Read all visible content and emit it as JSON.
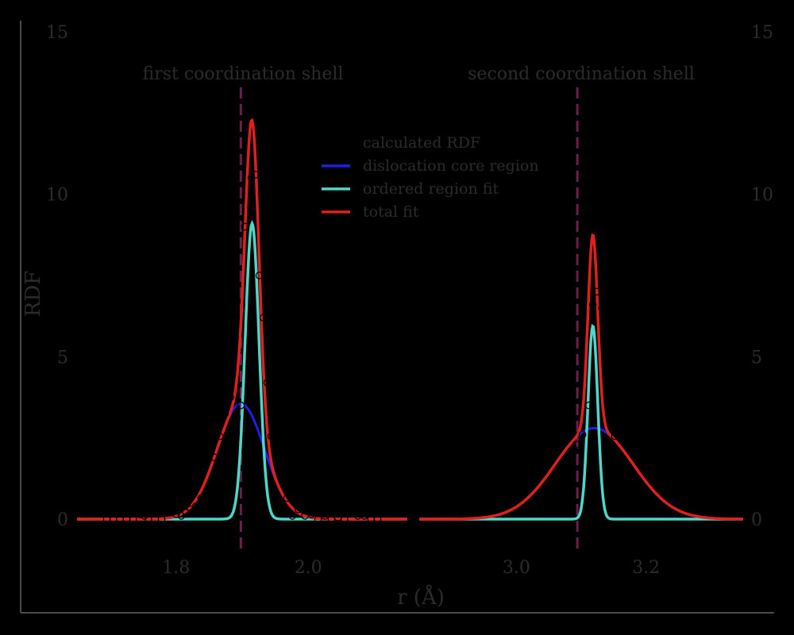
{
  "chart_data": {
    "type": "line",
    "ylabel": "RDF",
    "xlabel": "r (Å)",
    "ylim": [
      0,
      15
    ],
    "yticks": [
      0,
      5,
      10,
      15
    ],
    "legend": {
      "placement": "top-center",
      "entries": [
        {
          "label": "calculated RDF",
          "marker": "circle",
          "color": "#000000"
        },
        {
          "label": "dislocation core region",
          "marker": "line",
          "color": "#1f1fe0"
        },
        {
          "label": "ordered region fit",
          "marker": "line",
          "color": "#4fd6c8"
        },
        {
          "label": "total fit",
          "marker": "line",
          "color": "#e0201f"
        }
      ]
    },
    "panels": [
      {
        "title": "first coordination shell",
        "xlim": [
          1.65,
          2.15
        ],
        "xticks": [
          1.8,
          2.0
        ],
        "xticklabels": [
          "1.8",
          "2.0"
        ],
        "dashed_x": 1.898,
        "dislocation": {
          "amp": 3.55,
          "mu": 1.898,
          "sigma": 0.036
        },
        "ordered": {
          "amp": 9.1,
          "mu": 1.915,
          "sigma": 0.0105
        },
        "calculated_rdf": {
          "x": [
            1.695,
            1.705,
            1.715,
            1.725,
            1.735,
            1.745,
            1.752,
            1.758,
            1.765,
            1.772,
            1.778,
            1.785,
            1.792,
            1.8,
            1.808,
            1.815,
            1.822,
            1.83,
            1.838,
            1.846,
            1.852,
            1.858,
            1.866,
            1.874,
            1.882,
            1.89,
            1.898,
            1.904,
            1.91,
            1.914,
            1.92,
            1.926,
            1.932,
            1.938,
            1.944,
            1.952,
            1.96,
            1.968,
            1.976,
            1.985,
            1.995,
            2.005,
            2.015,
            2.025,
            2.035,
            2.045,
            2.055,
            2.065,
            2.075,
            2.085,
            2.095,
            2.105
          ],
          "y": [
            0.0,
            0.0,
            0.0,
            0.0,
            0.0,
            0.15,
            0.1,
            0.0,
            0.55,
            0.3,
            0.0,
            0.3,
            0.2,
            0.15,
            0.1,
            0.2,
            0.3,
            0.4,
            0.65,
            0.8,
            1.0,
            1.9,
            2.55,
            3.25,
            3.75,
            2.75,
            3.5,
            9.0,
            12.8,
            10.5,
            10.6,
            7.5,
            6.2,
            4.2,
            2.55,
            2.0,
            1.35,
            0.65,
            0.1,
            0.3,
            0.1,
            0.15,
            0.0,
            0.1,
            0.0,
            0.05,
            0.0,
            0.2,
            0.1,
            0.1,
            0.0,
            0.0
          ]
        }
      },
      {
        "title": "second coordination shell",
        "xlim": [
          2.85,
          3.35
        ],
        "xticks": [
          3.0,
          3.2
        ],
        "xticklabels": [
          "3.0",
          "3.2"
        ],
        "dashed_x": 3.094,
        "dislocation": {
          "amp": 2.8,
          "mu": 3.12,
          "sigma": 0.06
        },
        "ordered": {
          "amp": 5.95,
          "mu": 3.118,
          "sigma": 0.0075
        },
        "calculated_rdf": {
          "x": [
            2.862,
            2.872,
            2.882,
            2.892,
            2.902,
            2.912,
            2.922,
            2.932,
            2.942,
            2.952,
            2.962,
            2.972,
            2.982,
            2.992,
            3.002,
            3.012,
            3.022,
            3.032,
            3.042,
            3.052,
            3.062,
            3.072,
            3.082,
            3.092,
            3.102,
            3.112,
            3.118,
            3.124,
            3.132,
            3.142,
            3.152,
            3.162,
            3.172,
            3.182,
            3.192,
            3.202,
            3.212,
            3.222,
            3.232,
            3.242,
            3.252,
            3.262,
            3.272,
            3.282,
            3.292,
            3.302,
            3.312,
            3.322,
            3.332
          ],
          "y": [
            0.45,
            0.25,
            0.35,
            0.35,
            0.35,
            0.3,
            0.35,
            0.3,
            0.4,
            0.4,
            0.55,
            0.5,
            1.0,
            0.5,
            0.85,
            0.85,
            1.3,
            1.6,
            1.95,
            2.2,
            2.6,
            2.95,
            2.8,
            2.3,
            2.6,
            3.5,
            6.6,
            7.0,
            6.5,
            3.75,
            2.55,
            3.25,
            2.5,
            2.45,
            2.1,
            1.7,
            1.5,
            1.0,
            0.75,
            0.85,
            0.65,
            0.5,
            0.45,
            0.35,
            0.3,
            0.35,
            0.3,
            0.35,
            0.4
          ]
        }
      }
    ]
  }
}
